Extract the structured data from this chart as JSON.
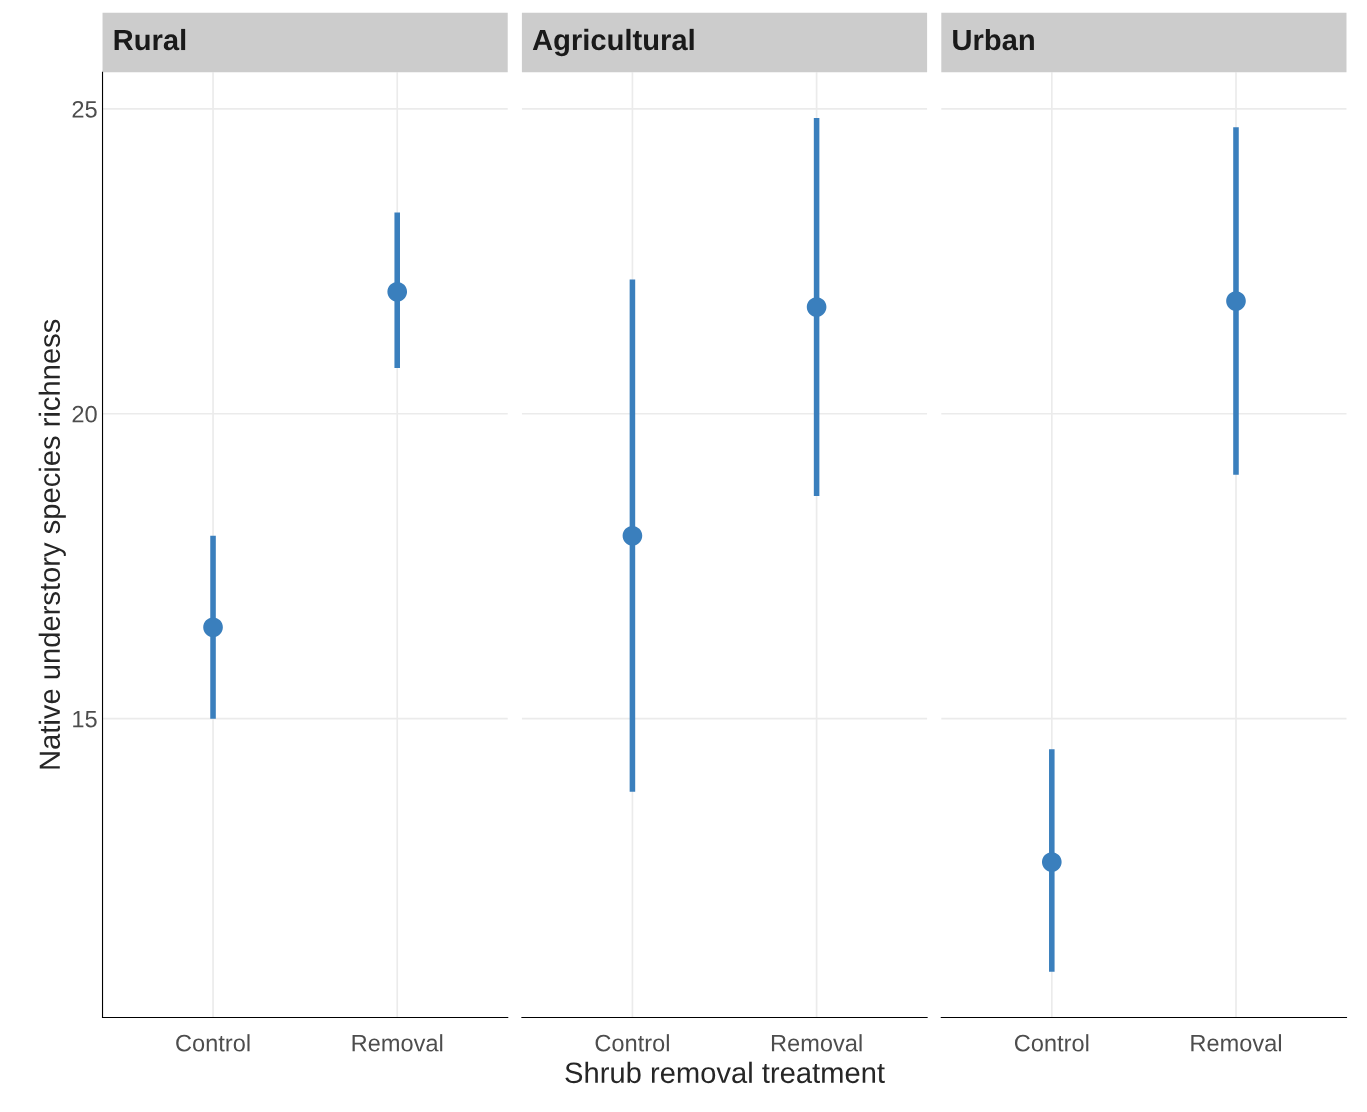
{
  "chart_data": [
    {
      "type": "scatter",
      "title": "Rural",
      "ylabel": "Native understory species richness",
      "categories": [
        "Control",
        "Removal"
      ],
      "values": [
        16.5,
        22.0
      ],
      "errors": [
        [
          15.0,
          18.0
        ],
        [
          20.75,
          23.3
        ]
      ],
      "color": "#3a7fbd",
      "marker": "circle",
      "ylim": [
        10.1,
        25.6
      ],
      "yticks": [
        15,
        20,
        25
      ],
      "grid": true
    },
    {
      "type": "scatter",
      "title": "Agricultural",
      "xlabel": "Shrub removal treatment",
      "categories": [
        "Control",
        "Removal"
      ],
      "values": [
        18.0,
        21.75
      ],
      "errors": [
        [
          13.8,
          22.2
        ],
        [
          18.65,
          24.85
        ]
      ],
      "color": "#3a7fbd",
      "marker": "circle",
      "ylim": [
        10.1,
        25.6
      ],
      "yticks": [
        15,
        20,
        25
      ],
      "grid": true,
      "tick_labels": "x"
    },
    {
      "type": "scatter",
      "title": "Urban",
      "categories": [
        "Control",
        "Removal"
      ],
      "values": [
        12.65,
        21.85
      ],
      "errors": [
        [
          10.85,
          14.5
        ],
        [
          19.0,
          24.7
        ]
      ],
      "color": "#3a7fbd",
      "marker": "circle",
      "ylim": [
        10.1,
        25.6
      ],
      "yticks": [
        15,
        20,
        25
      ],
      "grid": true,
      "tick_labels": "x"
    }
  ]
}
